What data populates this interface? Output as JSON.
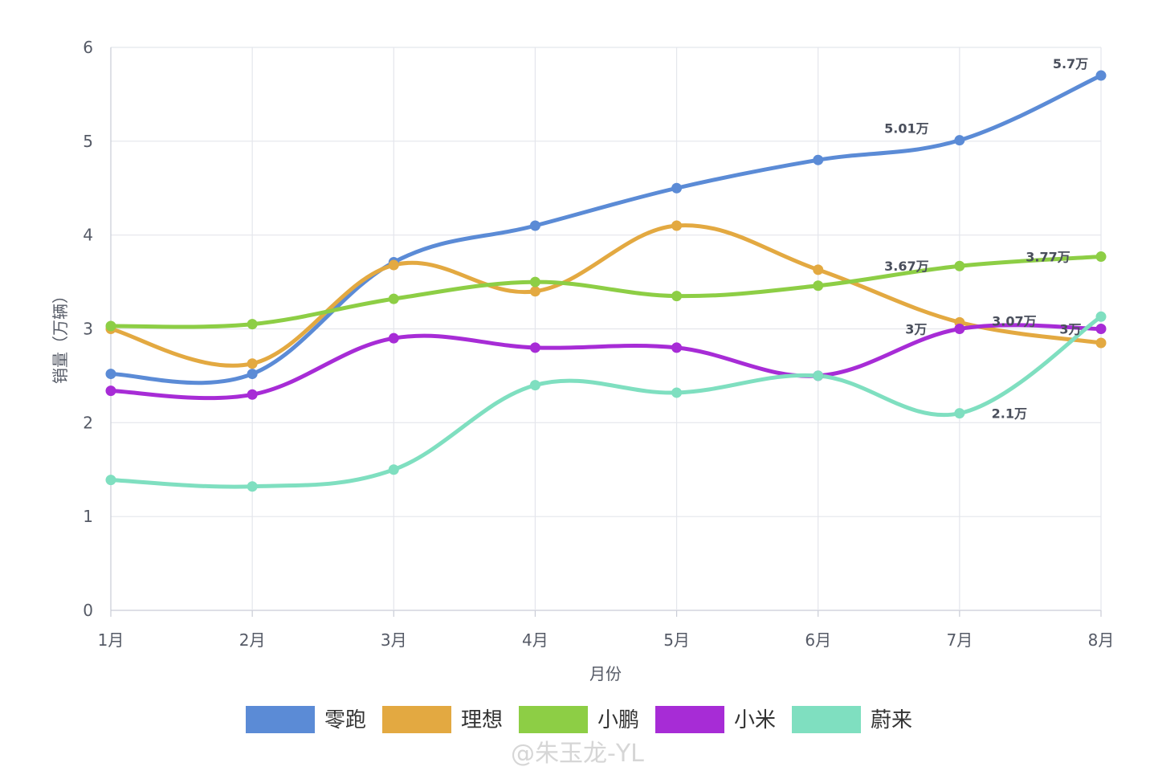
{
  "chart_data": {
    "type": "line",
    "smooth": true,
    "title": "",
    "xlabel": "月份",
    "ylabel": "销量（万辆）",
    "ylim": [
      0,
      6
    ],
    "yticks": [
      0,
      1,
      2,
      3,
      4,
      5,
      6
    ],
    "grid": true,
    "legend_position": "bottom",
    "categories": [
      "1月",
      "2月",
      "3月",
      "4月",
      "5月",
      "6月",
      "7月",
      "8月"
    ],
    "series": [
      {
        "name": "零跑",
        "color": "#5b8bd6",
        "values": [
          2.52,
          2.52,
          3.71,
          4.1,
          4.5,
          4.8,
          5.01,
          5.7
        ]
      },
      {
        "name": "理想",
        "color": "#e3a941",
        "values": [
          3.0,
          2.63,
          3.68,
          3.4,
          4.1,
          3.63,
          3.07,
          2.85
        ]
      },
      {
        "name": "小鹏",
        "color": "#8dce45",
        "values": [
          3.03,
          3.05,
          3.32,
          3.5,
          3.35,
          3.46,
          3.67,
          3.77
        ]
      },
      {
        "name": "小米",
        "color": "#a72cd6",
        "values": [
          2.34,
          2.3,
          2.9,
          2.8,
          2.8,
          2.5,
          3.0,
          3.0
        ]
      },
      {
        "name": "蔚来",
        "color": "#7fdfc0",
        "values": [
          1.39,
          1.32,
          1.5,
          2.4,
          2.32,
          2.5,
          2.1,
          3.13
        ]
      }
    ],
    "annotations": [
      {
        "text": "5.7万",
        "series": "零跑",
        "category": "8月"
      },
      {
        "text": "5.01万",
        "series": "零跑",
        "category": "7月"
      },
      {
        "text": "3.67万",
        "series": "小鹏",
        "category": "7月"
      },
      {
        "text": "3.77万",
        "series": "小鹏",
        "category": "8月"
      },
      {
        "text": "3万",
        "series": "小米",
        "category": "7月"
      },
      {
        "text": "3.07万",
        "series": "理想",
        "category": "7月"
      },
      {
        "text": "3万",
        "series": "小米",
        "category": "8月"
      },
      {
        "text": "2.1万",
        "series": "蔚来",
        "category": "7月"
      }
    ]
  },
  "watermark": {
    "text": "@朱玉龙-YL"
  }
}
